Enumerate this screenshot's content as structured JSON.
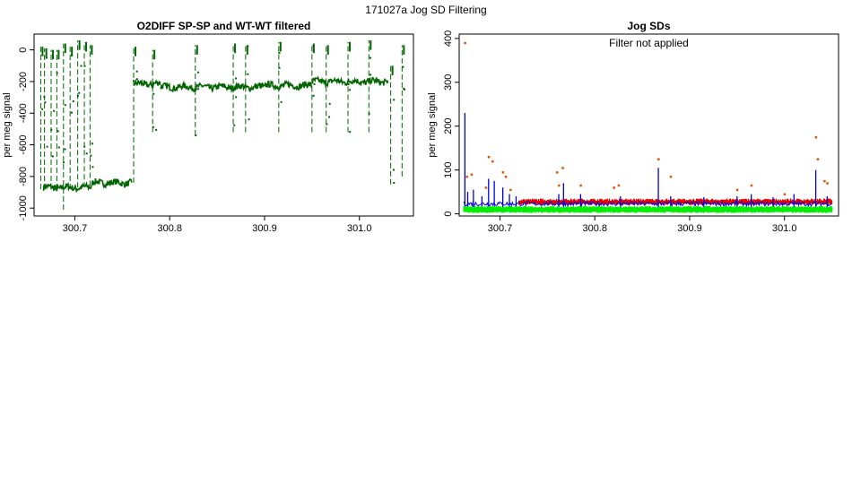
{
  "page_title": "171027a   Jog SD Filtering",
  "chart_data": [
    {
      "type": "scatter",
      "title": "O2DIFF SP-SP and WT-WT filtered",
      "xlabel": "",
      "ylabel": "per meg signal",
      "xlim": [
        300.657,
        301.057
      ],
      "ylim": [
        -1050,
        100
      ],
      "x_ticks": [
        "300.7",
        "300.8",
        "300.9",
        "301.0"
      ],
      "y_ticks": [
        "0",
        "-200",
        "-400",
        "-600",
        "-800",
        "-1000"
      ],
      "series_color": "#006400",
      "baseline_segments": [
        {
          "x_start": 300.667,
          "x_end": 300.718,
          "y": -870
        },
        {
          "x_start": 300.718,
          "x_end": 300.76,
          "y": -840
        },
        {
          "x_start": 300.763,
          "x_end": 300.79,
          "y": -215
        },
        {
          "x_start": 300.79,
          "x_end": 300.9,
          "y": -235
        },
        {
          "x_start": 300.9,
          "x_end": 300.95,
          "y": -225
        },
        {
          "x_start": 300.95,
          "x_end": 301.03,
          "y": -200
        }
      ],
      "spikes": [
        {
          "x": 300.664,
          "low": -880,
          "high": 20
        },
        {
          "x": 300.668,
          "low": -880,
          "high": 10
        },
        {
          "x": 300.675,
          "low": -880,
          "high": 0
        },
        {
          "x": 300.681,
          "low": -880,
          "high": 0
        },
        {
          "x": 300.688,
          "low": -1010,
          "high": 40
        },
        {
          "x": 300.695,
          "low": -880,
          "high": 20
        },
        {
          "x": 300.703,
          "low": -870,
          "high": 60
        },
        {
          "x": 300.71,
          "low": -870,
          "high": 50
        },
        {
          "x": 300.716,
          "low": -860,
          "high": 30
        },
        {
          "x": 300.762,
          "low": -840,
          "high": 20
        },
        {
          "x": 300.782,
          "low": -520,
          "high": 0
        },
        {
          "x": 300.827,
          "low": -540,
          "high": 30
        },
        {
          "x": 300.867,
          "low": -520,
          "high": 40
        },
        {
          "x": 300.88,
          "low": -520,
          "high": 30
        },
        {
          "x": 300.915,
          "low": -520,
          "high": 50
        },
        {
          "x": 300.95,
          "low": -520,
          "high": 40
        },
        {
          "x": 300.965,
          "low": -520,
          "high": 30
        },
        {
          "x": 300.988,
          "low": -520,
          "high": 50
        },
        {
          "x": 301.01,
          "low": -520,
          "high": 60
        },
        {
          "x": 301.033,
          "low": -850,
          "high": -100
        },
        {
          "x": 301.045,
          "low": -800,
          "high": 30
        }
      ]
    },
    {
      "type": "line",
      "title": "Jog SDs",
      "annotation": "Filter not applied",
      "xlabel": "",
      "ylabel": "per meg signal",
      "xlim": [
        300.657,
        301.057
      ],
      "ylim": [
        -5,
        410
      ],
      "x_ticks": [
        "300.7",
        "300.8",
        "300.9",
        "301.0"
      ],
      "y_ticks": [
        "0",
        "100",
        "200",
        "300",
        "400"
      ],
      "colors": {
        "blue": "#0000dd",
        "red": "#ee0000",
        "green": "#00ee00",
        "orange": "#dd5500"
      },
      "red_band": {
        "x_start": 300.72,
        "x_end": 301.05,
        "y_low": 20,
        "y_high": 30
      },
      "green_band": {
        "x_start": 300.662,
        "x_end": 301.05,
        "y_low": 5,
        "y_high": 14
      },
      "blue_spikes": [
        {
          "x": 300.663,
          "y": 230
        },
        {
          "x": 300.666,
          "y": 50
        },
        {
          "x": 300.672,
          "y": 55
        },
        {
          "x": 300.681,
          "y": 40
        },
        {
          "x": 300.688,
          "y": 80
        },
        {
          "x": 300.694,
          "y": 75
        },
        {
          "x": 300.703,
          "y": 60
        },
        {
          "x": 300.71,
          "y": 45
        },
        {
          "x": 300.717,
          "y": 40
        },
        {
          "x": 300.762,
          "y": 45
        },
        {
          "x": 300.767,
          "y": 70
        },
        {
          "x": 300.785,
          "y": 45
        },
        {
          "x": 300.827,
          "y": 40
        },
        {
          "x": 300.867,
          "y": 105
        },
        {
          "x": 300.88,
          "y": 40
        },
        {
          "x": 300.915,
          "y": 38
        },
        {
          "x": 300.95,
          "y": 40
        },
        {
          "x": 300.965,
          "y": 45
        },
        {
          "x": 300.988,
          "y": 38
        },
        {
          "x": 301.01,
          "y": 45
        },
        {
          "x": 301.033,
          "y": 100
        },
        {
          "x": 301.045,
          "y": 40
        }
      ],
      "outliers": [
        {
          "x": 300.663,
          "y": 390
        },
        {
          "x": 300.665,
          "y": 85
        },
        {
          "x": 300.67,
          "y": 90
        },
        {
          "x": 300.685,
          "y": 60
        },
        {
          "x": 300.688,
          "y": 130
        },
        {
          "x": 300.692,
          "y": 120
        },
        {
          "x": 300.703,
          "y": 95
        },
        {
          "x": 300.706,
          "y": 85
        },
        {
          "x": 300.711,
          "y": 55
        },
        {
          "x": 300.76,
          "y": 95
        },
        {
          "x": 300.762,
          "y": 65
        },
        {
          "x": 300.766,
          "y": 105
        },
        {
          "x": 300.785,
          "y": 65
        },
        {
          "x": 300.82,
          "y": 60
        },
        {
          "x": 300.825,
          "y": 65
        },
        {
          "x": 300.867,
          "y": 125
        },
        {
          "x": 300.88,
          "y": 85
        },
        {
          "x": 300.95,
          "y": 55
        },
        {
          "x": 300.965,
          "y": 65
        },
        {
          "x": 301.0,
          "y": 45
        },
        {
          "x": 301.033,
          "y": 175
        },
        {
          "x": 301.035,
          "y": 125
        },
        {
          "x": 301.042,
          "y": 75
        },
        {
          "x": 301.045,
          "y": 70
        }
      ]
    }
  ]
}
